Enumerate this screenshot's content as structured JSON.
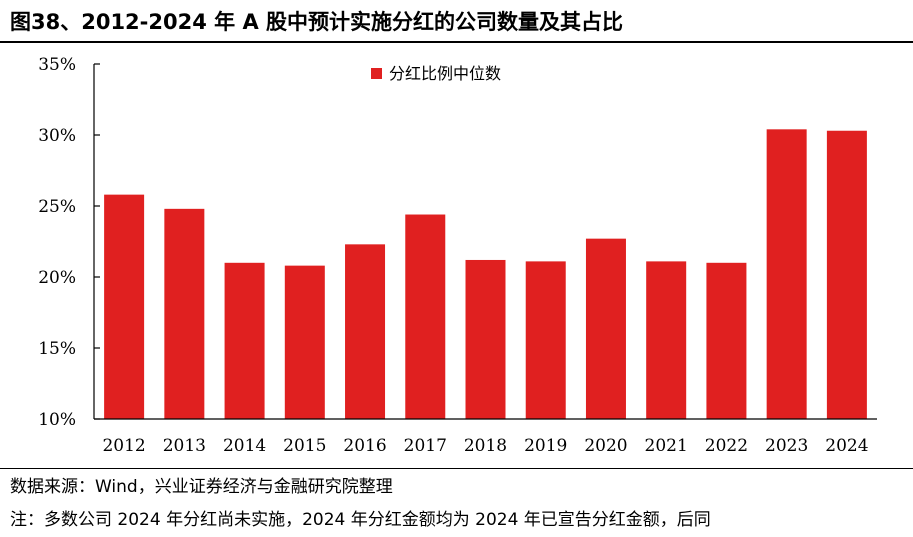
{
  "title": "图38、2012-2024 年 A 股中预计实施分红的公司数量及其占比",
  "source": "数据来源：Wind，兴业证券经济与金融研究院整理",
  "note": "注：多数公司 2024 年分红尚未实施，2024 年分红金额均为 2024 年已宣告分红金额，后同",
  "colors": {
    "bar": "#e02020",
    "axis": "#000000"
  },
  "chart_data": {
    "type": "bar",
    "categories": [
      "2012",
      "2013",
      "2014",
      "2015",
      "2016",
      "2017",
      "2018",
      "2019",
      "2020",
      "2021",
      "2022",
      "2023",
      "2024"
    ],
    "series": [
      {
        "name": "分红比例中位数",
        "values": [
          25.8,
          24.8,
          21.0,
          20.8,
          22.3,
          24.4,
          21.2,
          21.1,
          22.7,
          21.1,
          21.0,
          30.4,
          30.3
        ]
      }
    ],
    "ylim": [
      10,
      35
    ],
    "yticks": [
      "10%",
      "15%",
      "20%",
      "25%",
      "30%",
      "35%"
    ],
    "ytick_values": [
      10,
      15,
      20,
      25,
      30,
      35
    ],
    "legend": "top-center",
    "grid": false
  }
}
